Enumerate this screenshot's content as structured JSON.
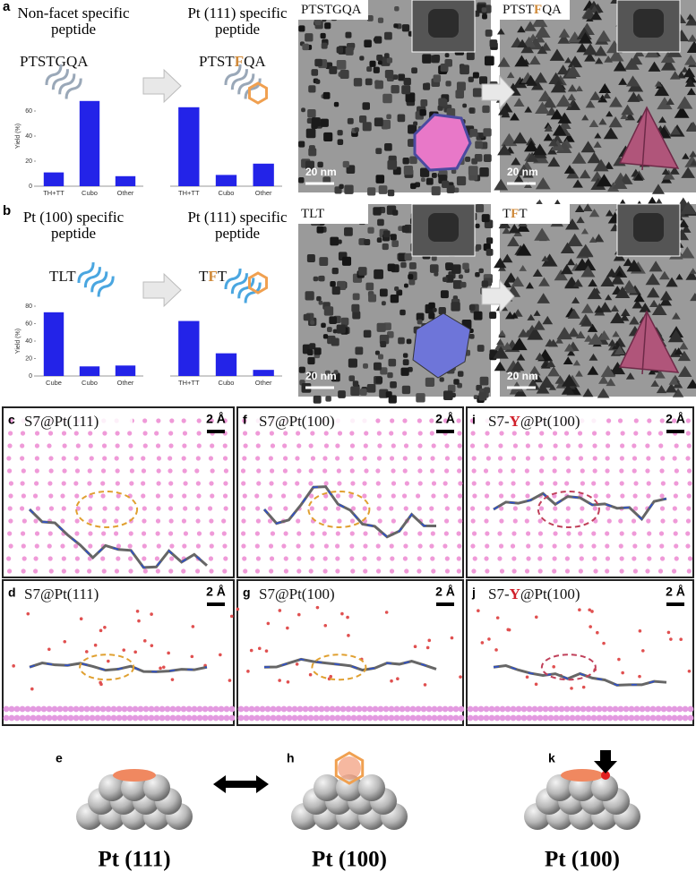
{
  "panels": {
    "a": {
      "letter": "a",
      "left_title": [
        "Non-facet specific",
        "peptide"
      ],
      "left_peptide": {
        "prefix": "PTSTGQA"
      },
      "right_title": [
        "Pt (111) specific",
        "peptide"
      ],
      "right_peptide": {
        "prefix": "PTST",
        "highlight": "F",
        "suffix": "QA"
      },
      "tem": [
        {
          "label": {
            "prefix": "PTSTGQA"
          },
          "scale_bar": "20 nm"
        },
        {
          "label": {
            "prefix": "PTST",
            "highlight": "F",
            "suffix": "QA"
          },
          "scale_bar": "20 nm"
        }
      ]
    },
    "b": {
      "letter": "b",
      "left_title": [
        "Pt (100) specific",
        "peptide"
      ],
      "left_peptide": {
        "prefix": "TLT"
      },
      "right_title": [
        "Pt (111) specific",
        "peptide"
      ],
      "right_peptide": {
        "prefix": "T",
        "highlight": "F",
        "suffix": "T"
      },
      "tem": [
        {
          "label": {
            "prefix": "TLT"
          },
          "scale_bar": "20 nm"
        },
        {
          "label": {
            "prefix": "T",
            "highlight": "F",
            "suffix": "T"
          },
          "scale_bar": "20 nm"
        }
      ]
    }
  },
  "chart_data": [
    {
      "type": "bar",
      "categories": [
        "TH+TT",
        "Cubo",
        "Other"
      ],
      "values": [
        11,
        68,
        8
      ],
      "color": "#2323e8",
      "ylim": [
        0,
        80
      ],
      "yticks": [
        0,
        20,
        40,
        60
      ],
      "y_label": "Yield (%)"
    },
    {
      "type": "bar",
      "categories": [
        "TH+TT",
        "Cubo",
        "Other"
      ],
      "values": [
        63,
        9,
        18
      ],
      "color": "#2323e8",
      "ylim": [
        0,
        80
      ]
    },
    {
      "type": "bar",
      "categories": [
        "Cube",
        "Cubo",
        "Other"
      ],
      "values": [
        73,
        11,
        12
      ],
      "color": "#2323e8",
      "ylim": [
        0,
        80
      ],
      "yticks": [
        0,
        20,
        40,
        60,
        80
      ],
      "y_label": "Yield (%)"
    },
    {
      "type": "bar",
      "categories": [
        "TH+TT",
        "Cubo",
        "Other"
      ],
      "values": [
        63,
        26,
        7
      ],
      "color": "#2323e8",
      "ylim": [
        0,
        80
      ]
    }
  ],
  "simulations": [
    {
      "letter": "c",
      "title": {
        "prefix": "S7@Pt(111)"
      },
      "scale_bar": "2 Å"
    },
    {
      "letter": "f",
      "title": {
        "prefix": "S7@Pt(100)"
      },
      "scale_bar": "2 Å"
    },
    {
      "letter": "i",
      "title": {
        "prefix": "S7-",
        "highlight": "Y",
        "suffix": "@Pt(100)"
      },
      "scale_bar": "2 Å"
    },
    {
      "letter": "d",
      "title": {
        "prefix": "S7@Pt(111)"
      },
      "scale_bar": "2 Å"
    },
    {
      "letter": "g",
      "title": {
        "prefix": "S7@Pt(100)"
      },
      "scale_bar": "2 Å"
    },
    {
      "letter": "j",
      "title": {
        "prefix": "S7-",
        "highlight": "Y",
        "suffix": "@Pt(100)"
      },
      "scale_bar": "2 Å"
    }
  ],
  "models": [
    {
      "letter": "e",
      "label": "Pt (111)"
    },
    {
      "letter": "h",
      "label": "Pt (100)"
    },
    {
      "letter": "k",
      "label": "Pt (100)"
    }
  ]
}
